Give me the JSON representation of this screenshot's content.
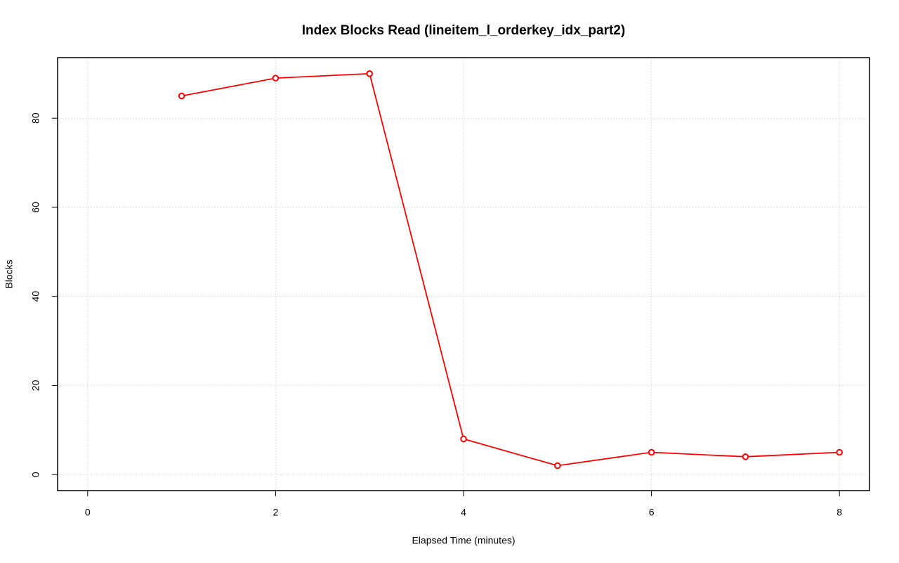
{
  "chart_data": {
    "type": "line",
    "title": "Index Blocks Read (lineitem_l_orderkey_idx_part2)",
    "xlabel": "Elapsed Time (minutes)",
    "ylabel": "Blocks",
    "x": [
      1,
      2,
      3,
      4,
      5,
      6,
      7,
      8
    ],
    "series": [
      {
        "color": "#ff0000",
        "values": [
          85,
          89,
          90,
          8,
          2,
          5,
          4,
          5
        ]
      }
    ],
    "xlim": [
      -0.32,
      8.32
    ],
    "xticks": [
      0,
      2,
      4,
      6,
      8
    ],
    "ylim": [
      -3.6,
      93.6
    ],
    "yticks": [
      0,
      20,
      40,
      60,
      80
    ],
    "grid": true
  }
}
